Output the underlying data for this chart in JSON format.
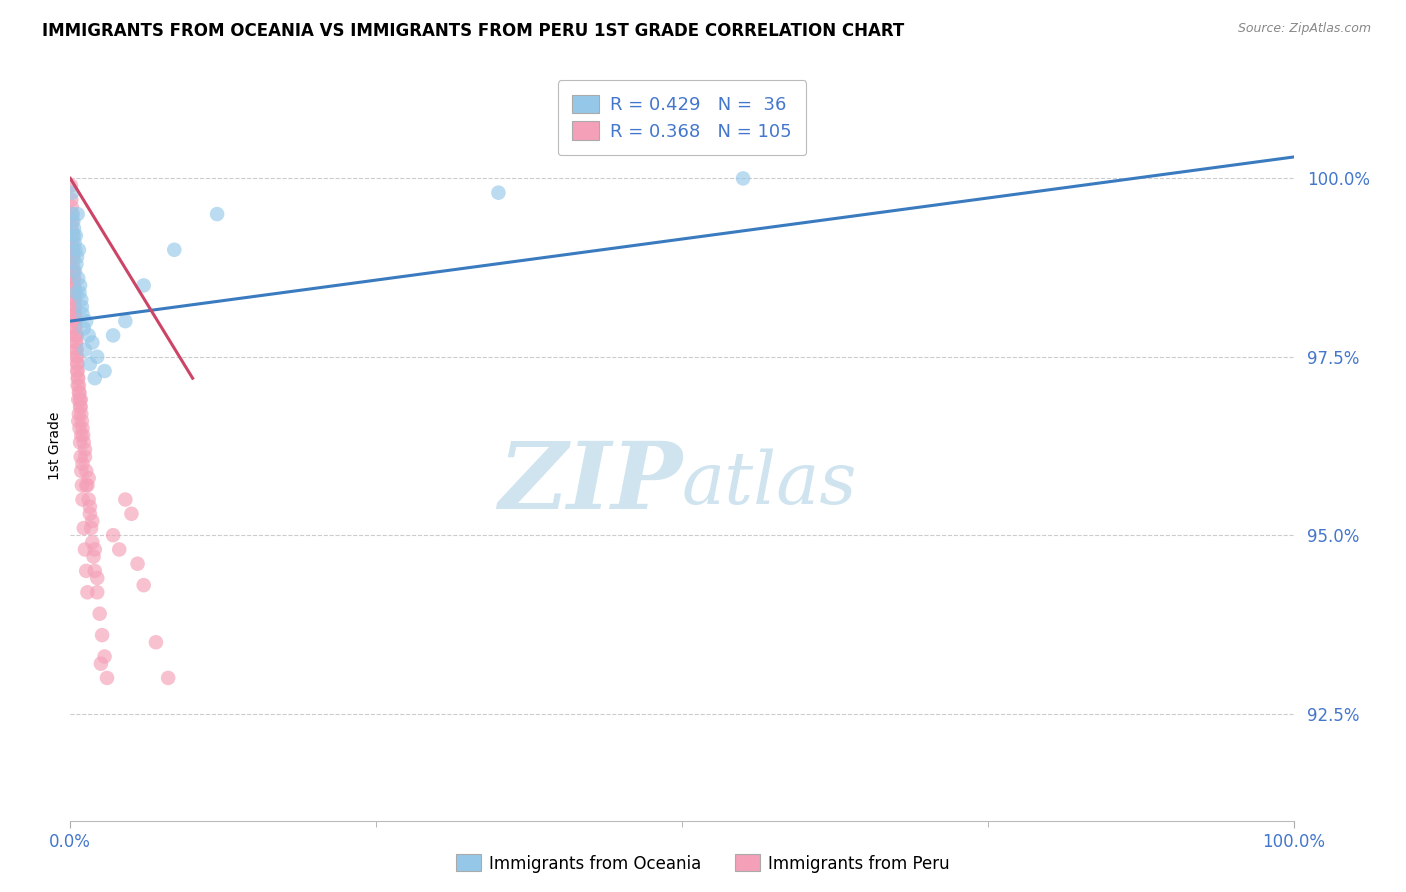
{
  "title": "IMMIGRANTS FROM OCEANIA VS IMMIGRANTS FROM PERU 1ST GRADE CORRELATION CHART",
  "source_text": "Source: ZipAtlas.com",
  "ylabel_text": "1st Grade",
  "x_label_ticks": [
    "0.0%",
    "100.0%"
  ],
  "y_label_ticks": [
    "92.5%",
    "95.0%",
    "97.5%",
    "100.0%"
  ],
  "xlim": [
    0.0,
    100.0
  ],
  "ylim": [
    91.0,
    101.5
  ],
  "ytick_positions": [
    92.5,
    95.0,
    97.5,
    100.0
  ],
  "xtick_positions": [
    0.0,
    100.0
  ],
  "blue_color": "#95c8e8",
  "pink_color": "#f4a0b8",
  "blue_line_color": "#3a7bbf",
  "pink_line_color": "#cc4466",
  "grid_color": "#cccccc",
  "background_color": "#ffffff",
  "watermark_color": "#d0e4f0",
  "tick_color": "#4477cc",
  "legend_fontsize": 13,
  "title_fontsize": 12,
  "axis_label_fontsize": 10,
  "tick_fontsize": 12,
  "blue_line_x": [
    0.0,
    100.0
  ],
  "blue_line_y": [
    98.0,
    100.3
  ],
  "pink_line_x": [
    0.0,
    10.0
  ],
  "pink_line_y": [
    100.0,
    97.2
  ],
  "oceania_x": [
    0.15,
    0.2,
    0.25,
    0.3,
    0.35,
    0.4,
    0.45,
    0.5,
    0.6,
    0.7,
    0.8,
    0.9,
    1.0,
    1.1,
    1.3,
    1.5,
    1.8,
    2.2,
    2.8,
    3.5,
    4.5,
    6.0,
    8.5,
    12.0,
    35.0,
    55.0,
    0.55,
    0.65,
    0.75,
    0.95,
    1.2,
    1.6,
    2.0,
    0.28,
    0.38,
    0.48
  ],
  "oceania_y": [
    99.8,
    99.5,
    99.4,
    99.3,
    99.1,
    99.0,
    99.2,
    98.8,
    99.5,
    99.0,
    98.5,
    98.3,
    98.1,
    97.9,
    98.0,
    97.8,
    97.7,
    97.5,
    97.3,
    97.8,
    98.0,
    98.5,
    99.0,
    99.5,
    99.8,
    100.0,
    98.9,
    98.6,
    98.4,
    98.2,
    97.6,
    97.4,
    97.2,
    99.2,
    98.7,
    98.4
  ],
  "peru_x": [
    0.05,
    0.08,
    0.1,
    0.12,
    0.15,
    0.18,
    0.2,
    0.22,
    0.25,
    0.28,
    0.3,
    0.32,
    0.35,
    0.38,
    0.4,
    0.42,
    0.45,
    0.48,
    0.5,
    0.52,
    0.55,
    0.58,
    0.6,
    0.65,
    0.7,
    0.75,
    0.8,
    0.85,
    0.9,
    0.95,
    1.0,
    1.05,
    1.1,
    1.2,
    1.3,
    1.4,
    1.5,
    1.6,
    1.7,
    1.8,
    1.9,
    2.0,
    2.2,
    2.4,
    2.6,
    2.8,
    3.0,
    3.5,
    4.0,
    4.5,
    5.0,
    5.5,
    6.0,
    7.0,
    8.0,
    0.1,
    0.15,
    0.2,
    0.25,
    0.3,
    0.35,
    0.4,
    0.45,
    0.5,
    0.55,
    0.6,
    0.65,
    0.7,
    0.75,
    0.8,
    0.85,
    0.9,
    0.95,
    1.0,
    1.1,
    1.2,
    1.3,
    1.4,
    1.0,
    0.6,
    0.8,
    0.4,
    1.5,
    0.3,
    0.7,
    2.0,
    1.8,
    0.5,
    0.35,
    0.45,
    0.55,
    1.2,
    0.65,
    0.85,
    0.15,
    0.25,
    0.9,
    1.6,
    0.48,
    2.2,
    1.3,
    2.5,
    0.22,
    0.32
  ],
  "peru_y": [
    99.9,
    99.7,
    99.5,
    99.6,
    99.4,
    99.2,
    99.0,
    98.9,
    98.7,
    98.6,
    98.5,
    98.3,
    98.2,
    98.1,
    98.0,
    97.9,
    97.8,
    97.7,
    97.6,
    97.8,
    97.5,
    97.4,
    97.3,
    97.2,
    97.1,
    97.0,
    96.9,
    96.8,
    96.7,
    96.6,
    96.5,
    96.4,
    96.3,
    96.1,
    95.9,
    95.7,
    95.5,
    95.3,
    95.1,
    94.9,
    94.7,
    94.5,
    94.2,
    93.9,
    93.6,
    93.3,
    93.0,
    95.0,
    94.8,
    95.5,
    95.3,
    94.6,
    94.3,
    93.5,
    93.0,
    99.3,
    99.0,
    98.8,
    98.5,
    98.4,
    98.1,
    97.9,
    97.7,
    97.5,
    97.3,
    97.1,
    96.9,
    96.7,
    96.5,
    96.3,
    96.1,
    95.9,
    95.7,
    95.5,
    95.1,
    94.8,
    94.5,
    94.2,
    96.0,
    97.2,
    96.8,
    98.2,
    95.8,
    98.6,
    97.0,
    94.8,
    95.2,
    97.6,
    98.3,
    98.0,
    97.4,
    96.2,
    96.6,
    96.9,
    99.1,
    98.7,
    96.4,
    95.4,
    97.8,
    94.4,
    95.7,
    93.2,
    98.9,
    98.1
  ]
}
